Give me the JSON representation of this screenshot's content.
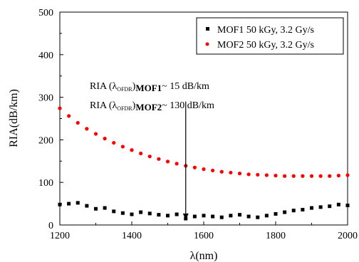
{
  "chart_data": {
    "type": "scatter",
    "xlabel": "λ(nm)",
    "ylabel": "RIA(dB/km)",
    "xlim": [
      1200,
      2000
    ],
    "ylim": [
      0,
      500
    ],
    "x_ticks": [
      1200,
      1400,
      1600,
      1800,
      2000
    ],
    "y_ticks": [
      0,
      100,
      200,
      300,
      400,
      500
    ],
    "grid": false,
    "legend_position": "top-right",
    "series": [
      {
        "name": "MOF1 50 kGy, 3.2 Gy/s",
        "color": "#000000",
        "marker": "square",
        "x": [
          1200,
          1225,
          1250,
          1275,
          1300,
          1325,
          1350,
          1375,
          1400,
          1425,
          1450,
          1475,
          1500,
          1525,
          1550,
          1575,
          1600,
          1625,
          1650,
          1675,
          1700,
          1725,
          1750,
          1775,
          1800,
          1825,
          1850,
          1875,
          1900,
          1925,
          1950,
          1975,
          2000
        ],
        "y": [
          48,
          50,
          52,
          45,
          38,
          40,
          32,
          28,
          25,
          30,
          27,
          24,
          22,
          25,
          15,
          20,
          22,
          20,
          18,
          22,
          24,
          20,
          18,
          22,
          26,
          30,
          34,
          36,
          40,
          42,
          44,
          48,
          46
        ]
      },
      {
        "name": "MOF2 50 kGy, 3.2 Gy/s",
        "color": "#ff0000",
        "marker": "circle",
        "x": [
          1200,
          1225,
          1250,
          1275,
          1300,
          1325,
          1350,
          1375,
          1400,
          1425,
          1450,
          1475,
          1500,
          1525,
          1550,
          1575,
          1600,
          1625,
          1650,
          1675,
          1700,
          1725,
          1750,
          1775,
          1800,
          1825,
          1850,
          1875,
          1900,
          1925,
          1950,
          1975,
          2000
        ],
        "y": [
          274,
          256,
          240,
          226,
          214,
          203,
          193,
          184,
          176,
          168,
          161,
          155,
          149,
          144,
          139,
          135,
          131,
          128,
          125,
          123,
          121,
          119,
          118,
          117,
          116,
          115,
          115,
          115,
          115,
          115,
          115,
          116,
          117
        ]
      }
    ],
    "annotations": {
      "line1_main": "RIA (λ",
      "line1_sub": "OFDR",
      "line1_bold": "MOF1",
      "line1_value": "~ 15 dB/km",
      "line2_main": "RIA (λ",
      "line2_sub": "OFDR",
      "line2_bold": "MOF2",
      "line2_value": "~ 130 dB/km"
    },
    "arrow": {
      "x": 1550,
      "y_from": 290,
      "y_to": 12
    }
  }
}
